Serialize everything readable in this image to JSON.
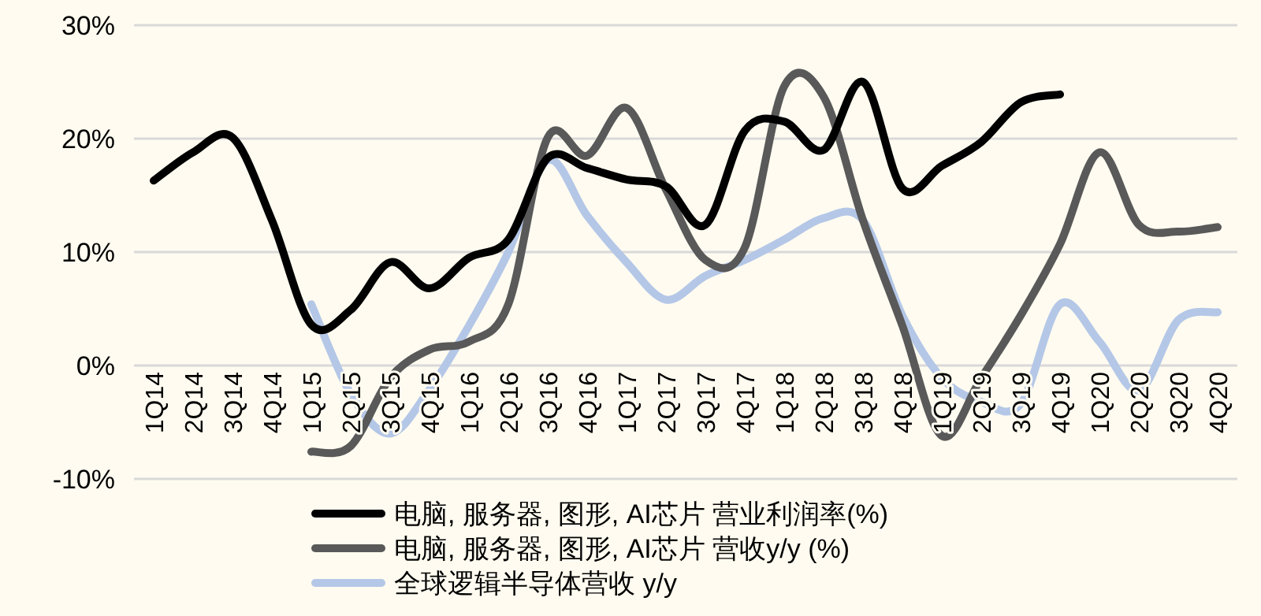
{
  "chart_data": {
    "type": "line",
    "categories": [
      "1Q14",
      "2Q14",
      "3Q14",
      "4Q14",
      "1Q15",
      "2Q15",
      "3Q15",
      "4Q15",
      "1Q16",
      "2Q16",
      "3Q16",
      "4Q16",
      "1Q17",
      "2Q17",
      "3Q17",
      "4Q17",
      "1Q18",
      "2Q18",
      "3Q18",
      "4Q18",
      "1Q19",
      "2Q19",
      "3Q19",
      "4Q19",
      "1Q20",
      "2Q20",
      "3Q20",
      "4Q20"
    ],
    "series": [
      {
        "name": "电脑, 服务器, 图形, AI芯片  营业利润率(%)",
        "color": "#000000",
        "values": [
          16.3,
          18.8,
          20.1,
          12.8,
          3.6,
          4.9,
          9.1,
          6.8,
          9.5,
          11.1,
          18.3,
          17.4,
          16.4,
          15.8,
          12.4,
          20.7,
          21.5,
          19.0,
          25.0,
          15.6,
          17.6,
          19.7,
          23.2,
          23.9,
          null,
          null,
          null,
          null
        ]
      },
      {
        "name": "电脑, 服务器, 图形, AI芯片  营收y/y (%)",
        "color": "#595959",
        "values": [
          null,
          null,
          null,
          null,
          -7.6,
          -7.1,
          -1.1,
          1.4,
          2.1,
          5.4,
          20.1,
          18.5,
          22.7,
          15.5,
          9.3,
          10.4,
          24.6,
          23.7,
          12.8,
          3.5,
          -6.2,
          -1.1,
          4.4,
          10.7,
          18.8,
          12.4,
          11.8,
          12.2
        ]
      },
      {
        "name": "全球逻辑半导体营收 y/y",
        "color": "#b4c7e7",
        "values": [
          null,
          null,
          null,
          null,
          5.4,
          -2.5,
          -6.0,
          -2.1,
          3.5,
          10.0,
          18.1,
          13.2,
          9.1,
          5.8,
          7.9,
          9.3,
          11.1,
          13.0,
          12.8,
          4.4,
          -1.1,
          -3.2,
          -3.4,
          5.4,
          2.1,
          -2.2,
          4.0,
          4.7
        ]
      }
    ],
    "ylim": [
      -10,
      30
    ],
    "yticks": [
      {
        "value": -10,
        "label": "-10%"
      },
      {
        "value": 0,
        "label": "0%"
      },
      {
        "value": 10,
        "label": "10%"
      },
      {
        "value": 20,
        "label": "20%"
      },
      {
        "value": 30,
        "label": "30%"
      }
    ],
    "grid": "y",
    "legend": "bottom",
    "marker": "none",
    "line_style": "solid"
  }
}
